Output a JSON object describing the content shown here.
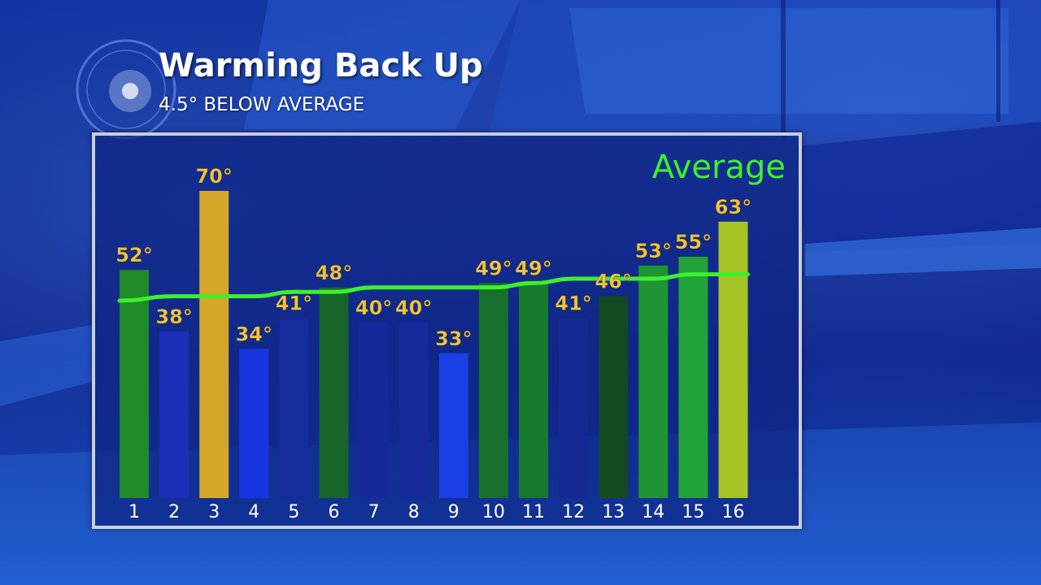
{
  "header": {
    "title": "Warming Back Up",
    "subtitle": "4.5° BELOW AVERAGE"
  },
  "chart_data": {
    "type": "bar",
    "title": "Warming Back Up",
    "subtitle": "4.5° BELOW AVERAGE",
    "xlabel": "",
    "ylabel": "",
    "categories": [
      "1",
      "2",
      "3",
      "4",
      "5",
      "6",
      "7",
      "8",
      "9",
      "10",
      "11",
      "12",
      "13",
      "14",
      "15",
      "16"
    ],
    "values": [
      52,
      38,
      70,
      34,
      41,
      48,
      40,
      40,
      33,
      49,
      49,
      41,
      46,
      53,
      55,
      63
    ],
    "value_labels": [
      "52°",
      "38°",
      "70°",
      "34°",
      "41°",
      "48°",
      "40°",
      "40°",
      "33°",
      "49°",
      "49°",
      "41°",
      "46°",
      "53°",
      "55°",
      "63°"
    ],
    "bar_colors": [
      "#1f8a2a",
      "#1b2fb8",
      "#d4a62a",
      "#1736e0",
      "#142c9c",
      "#17652a",
      "#16299a",
      "#162a9c",
      "#1a3fe4",
      "#17702c",
      "#187a2e",
      "#142a92",
      "#134a22",
      "#1f9434",
      "#22a33a",
      "#a6c425"
    ],
    "average_line": {
      "label": "Average",
      "color": "#3df02c",
      "values": [
        45,
        46,
        46,
        46,
        47,
        47,
        48,
        48,
        48,
        48,
        49,
        50,
        50,
        50,
        51,
        51
      ]
    },
    "label_color": "#f0c43a",
    "ylim": [
      0,
      75
    ],
    "grid": false,
    "legend": "top-right"
  }
}
